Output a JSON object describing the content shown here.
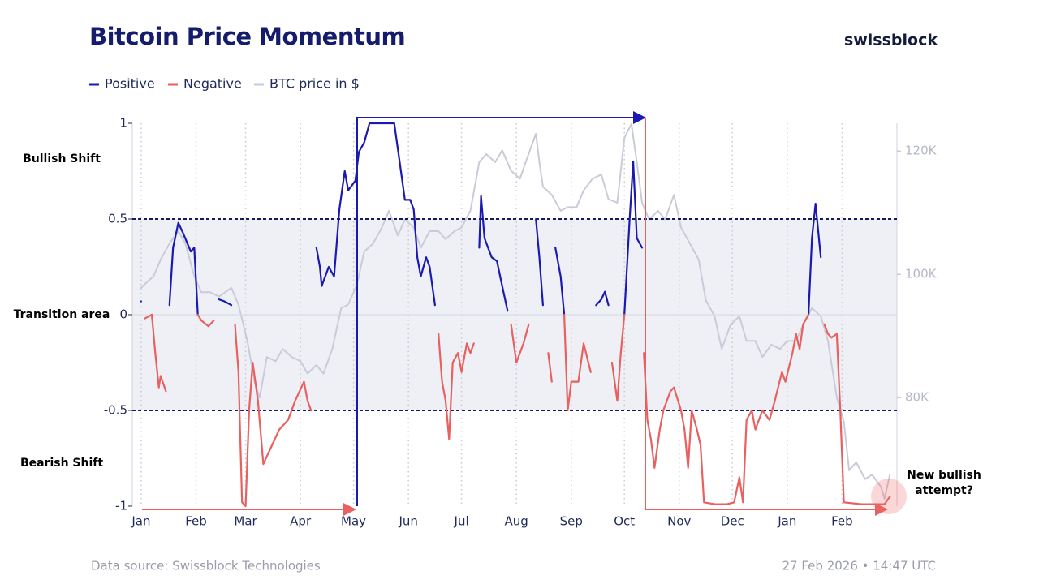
{
  "chart_data": {
    "type": "line",
    "title": "Bitcoin Price Momentum",
    "brand": "swissblock",
    "source": "Data source: Swissblock Technologies",
    "timestamp": "27 Feb 2026 • 14:47 UTC",
    "annotations": [
      "Bullish Shift",
      "Transition area",
      "Bearish Shift"
    ],
    "callout": [
      "New bullish",
      "attempt?"
    ],
    "xlim": [
      -5,
      427
    ],
    "xticks": [
      {
        "value": 0,
        "label": "Jan"
      },
      {
        "value": 31,
        "label": "Feb"
      },
      {
        "value": 59,
        "label": "Mar"
      },
      {
        "value": 90,
        "label": "Apr"
      },
      {
        "value": 120,
        "label": "May"
      },
      {
        "value": 151,
        "label": "Jun"
      },
      {
        "value": 181,
        "label": "Jul"
      },
      {
        "value": 212,
        "label": "Aug"
      },
      {
        "value": 243,
        "label": "Sep"
      },
      {
        "value": 273,
        "label": "Oct"
      },
      {
        "value": 304,
        "label": "Nov"
      },
      {
        "value": 334,
        "label": "Dec"
      },
      {
        "value": 365,
        "label": "Jan"
      },
      {
        "value": 396,
        "label": "Feb"
      }
    ],
    "ylim": [
      -1,
      1
    ],
    "yticks": [
      1,
      0.5,
      0,
      -0.5,
      -1
    ],
    "y2lim": [
      62400,
      124500
    ],
    "y2ticks": [
      {
        "value": 80000,
        "label": "80K"
      },
      {
        "value": 100000,
        "label": "100K"
      },
      {
        "value": 120000,
        "label": "120K"
      }
    ],
    "grid": true,
    "x": [
      0,
      2,
      6,
      8,
      10,
      11,
      14,
      16,
      18,
      21,
      24,
      28,
      30,
      32,
      34,
      38,
      41,
      44,
      47,
      51,
      53,
      55,
      57,
      59,
      61,
      63,
      66,
      69,
      74,
      78,
      83,
      87,
      92,
      94,
      96,
      99,
      101,
      102,
      106,
      109,
      112,
      115,
      117,
      121,
      123,
      126,
      129,
      136,
      143,
      146,
      149,
      152,
      154,
      156,
      158,
      161,
      163,
      166,
      168,
      170,
      172,
      174,
      176,
      179,
      181,
      184,
      186,
      188,
      191,
      192,
      194,
      198,
      201,
      204,
      207,
      209,
      212,
      216,
      219,
      223,
      225,
      227,
      230,
      232,
      234,
      237,
      239,
      241,
      243,
      247,
      250,
      254,
      257,
      260,
      262,
      264,
      266,
      269,
      271,
      273,
      276,
      278,
      280,
      283,
      284,
      286,
      288,
      290,
      293,
      295,
      299,
      301,
      305,
      307,
      309,
      311,
      314,
      316,
      318,
      324,
      331,
      335,
      338,
      340,
      342,
      345,
      347,
      349,
      351,
      355,
      358,
      362,
      364,
      368,
      370,
      372,
      374,
      377,
      379,
      381,
      384,
      386,
      388,
      390,
      393,
      395,
      397,
      407,
      416,
      420,
      423
    ],
    "series": [
      {
        "name": "Positive",
        "color": "#1a1ab0",
        "values": [
          0.07,
          null,
          0,
          null,
          null,
          null,
          null,
          0.05,
          0.35,
          0.48,
          0.42,
          0.33,
          0.35,
          0,
          null,
          null,
          null,
          0.08,
          0.07,
          0.05,
          null,
          null,
          null,
          null,
          null,
          null,
          null,
          null,
          null,
          null,
          null,
          null,
          null,
          null,
          null,
          0.35,
          0.25,
          0.15,
          0.25,
          0.2,
          0.55,
          0.75,
          0.65,
          0.7,
          0.85,
          0.9,
          1,
          1,
          1,
          0.8,
          0.6,
          0.6,
          0.55,
          0.3,
          0.2,
          0.3,
          0.25,
          0.05,
          null,
          null,
          null,
          null,
          null,
          null,
          null,
          null,
          null,
          null,
          0.35,
          0.62,
          0.4,
          0.3,
          0.28,
          0.15,
          0.02,
          null,
          null,
          null,
          null,
          0.5,
          0.3,
          0.05,
          null,
          null,
          0.35,
          0.2,
          0,
          null,
          null,
          null,
          null,
          null,
          0.05,
          0.08,
          0.12,
          0.05,
          null,
          null,
          null,
          0,
          0.5,
          0.8,
          0.4,
          0.35,
          null,
          null,
          null,
          null,
          null,
          null,
          null,
          null,
          null,
          null,
          null,
          null,
          null,
          null,
          null,
          null,
          null,
          null,
          null,
          null,
          null,
          null,
          null,
          null,
          null,
          null,
          null,
          null,
          null,
          null,
          null,
          null,
          null,
          0,
          0.4,
          0.58,
          0.3,
          null,
          null,
          null,
          null,
          null,
          null,
          null,
          null,
          null,
          null
        ]
      },
      {
        "name": "Negative",
        "color": "#e8605f",
        "values": [
          null,
          -0.02,
          0,
          -0.2,
          -0.38,
          -0.32,
          -0.4,
          null,
          null,
          null,
          null,
          null,
          null,
          0,
          -0.03,
          -0.06,
          -0.03,
          null,
          null,
          null,
          -0.05,
          -0.3,
          -0.98,
          -1,
          -0.5,
          -0.25,
          -0.45,
          -0.78,
          -0.68,
          -0.6,
          -0.55,
          -0.45,
          -0.35,
          -0.45,
          -0.5,
          null,
          null,
          null,
          null,
          null,
          null,
          null,
          null,
          null,
          null,
          null,
          null,
          null,
          null,
          null,
          null,
          null,
          null,
          null,
          null,
          null,
          null,
          null,
          -0.1,
          -0.35,
          -0.45,
          -0.65,
          -0.25,
          -0.2,
          -0.3,
          -0.15,
          -0.2,
          -0.15,
          null,
          null,
          null,
          null,
          null,
          null,
          null,
          -0.05,
          -0.25,
          -0.15,
          -0.05,
          null,
          null,
          null,
          -0.2,
          -0.35,
          null,
          null,
          0,
          -0.5,
          -0.35,
          -0.35,
          -0.15,
          -0.3,
          null,
          null,
          null,
          null,
          -0.25,
          -0.45,
          -0.2,
          0,
          null,
          null,
          null,
          null,
          -0.2,
          -0.55,
          -0.65,
          -0.8,
          -0.6,
          -0.5,
          -0.4,
          -0.38,
          -0.5,
          -0.6,
          -0.8,
          -0.5,
          -0.6,
          -0.68,
          -0.98,
          -0.99,
          -0.99,
          -0.98,
          -0.85,
          -0.98,
          -0.55,
          -0.5,
          -0.6,
          -0.55,
          -0.5,
          -0.55,
          -0.45,
          -0.3,
          -0.35,
          -0.2,
          -0.1,
          -0.18,
          -0.05,
          0,
          null,
          null,
          null,
          -0.05,
          -0.1,
          -0.12,
          -0.1,
          -0.5,
          -0.98,
          -0.99,
          -0.99,
          -0.99,
          -0.95
        ]
      },
      {
        "name": "BTC price in $",
        "color": "#c9cbd8",
        "axis": "y2",
        "x": [
          0,
          2,
          7,
          11,
          16,
          21,
          25,
          30,
          34,
          39,
          44,
          51,
          55,
          60,
          64,
          67,
          71,
          76,
          80,
          85,
          90,
          94,
          99,
          103,
          108,
          113,
          117,
          122,
          126,
          131,
          136,
          140,
          145,
          149,
          154,
          158,
          163,
          168,
          172,
          177,
          181,
          186,
          191,
          195,
          200,
          204,
          209,
          214,
          218,
          223,
          225,
          227,
          232,
          237,
          241,
          246,
          250,
          255,
          260,
          264,
          269,
          273,
          277,
          280,
          283,
          287,
          292,
          296,
          301,
          305,
          310,
          315,
          319,
          324,
          328,
          333,
          338,
          342,
          347,
          351,
          356,
          361,
          365,
          370,
          374,
          379,
          384,
          388,
          393,
          397,
          400,
          404,
          409,
          413,
          418,
          420,
          423
        ],
        "values": [
          97800,
          98400,
          99700,
          102400,
          105000,
          107000,
          105000,
          99700,
          97100,
          97100,
          96400,
          97800,
          95100,
          89200,
          82600,
          80000,
          86600,
          85900,
          87900,
          86600,
          85900,
          83900,
          85300,
          83900,
          87900,
          94500,
          95100,
          98400,
          103700,
          105000,
          107600,
          110300,
          106300,
          108900,
          107600,
          104300,
          107000,
          107000,
          105700,
          107000,
          107600,
          110300,
          118200,
          119500,
          118200,
          120100,
          116800,
          115500,
          118800,
          122800,
          118200,
          114200,
          112900,
          110300,
          110900,
          110900,
          113600,
          115500,
          116200,
          112200,
          111600,
          122100,
          124400,
          118200,
          111600,
          108900,
          110300,
          108900,
          112900,
          107600,
          105000,
          102400,
          95800,
          93200,
          87900,
          91800,
          93200,
          89200,
          89200,
          86600,
          88600,
          87900,
          89200,
          89200,
          91800,
          94500,
          93200,
          89200,
          80000,
          76100,
          68200,
          69500,
          66800,
          67500,
          65500,
          63600,
          67500
        ]
      }
    ]
  }
}
